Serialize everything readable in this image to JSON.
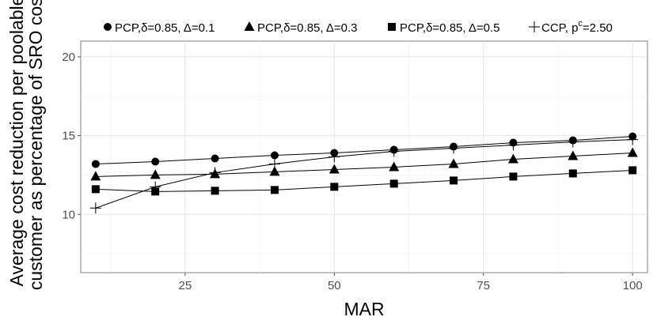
{
  "chart_data": {
    "type": "line",
    "title": "",
    "xlabel": "MAR",
    "ylabel_lines": [
      "Average cost reduction per poolable",
      "customer as percentage of SRO cost"
    ],
    "xlim": [
      7.5,
      102.5
    ],
    "ylim": [
      6.3,
      21.0
    ],
    "x_ticks": [
      25,
      50,
      75,
      100
    ],
    "x_tick_labels": [
      "25",
      "50",
      "75",
      "100"
    ],
    "y_ticks": [
      10,
      15,
      20
    ],
    "y_tick_labels": [
      "10",
      "15",
      "20"
    ],
    "grid": true,
    "legend_position": "top",
    "series": [
      {
        "name": "PCP,δ=0.85, Δ=0.1",
        "marker": "circle",
        "x": [
          10,
          20,
          30,
          40,
          50,
          60,
          70,
          80,
          90,
          100
        ],
        "y": [
          13.2,
          13.35,
          13.55,
          13.75,
          13.9,
          14.1,
          14.3,
          14.55,
          14.7,
          14.95
        ]
      },
      {
        "name": "PCP,δ=0.85, Δ=0.3",
        "marker": "triangle",
        "x": [
          10,
          20,
          30,
          40,
          50,
          60,
          70,
          80,
          90,
          100
        ],
        "y": [
          12.4,
          12.5,
          12.55,
          12.7,
          12.85,
          13.0,
          13.2,
          13.5,
          13.7,
          13.9
        ]
      },
      {
        "name": "PCP,δ=0.85, Δ=0.5",
        "marker": "square",
        "x": [
          10,
          20,
          30,
          40,
          50,
          60,
          70,
          80,
          90,
          100
        ],
        "y": [
          11.6,
          11.45,
          11.5,
          11.55,
          11.75,
          11.95,
          12.15,
          12.4,
          12.6,
          12.8
        ]
      },
      {
        "name": "CCP, p",
        "name_superscript": "c",
        "name_suffix": "=2.50",
        "marker": "plus",
        "x": [
          10,
          20,
          30,
          40,
          50,
          60,
          70,
          80,
          90,
          100
        ],
        "y": [
          10.4,
          11.75,
          12.65,
          13.2,
          13.65,
          14.0,
          14.2,
          14.4,
          14.6,
          14.75
        ]
      }
    ]
  }
}
